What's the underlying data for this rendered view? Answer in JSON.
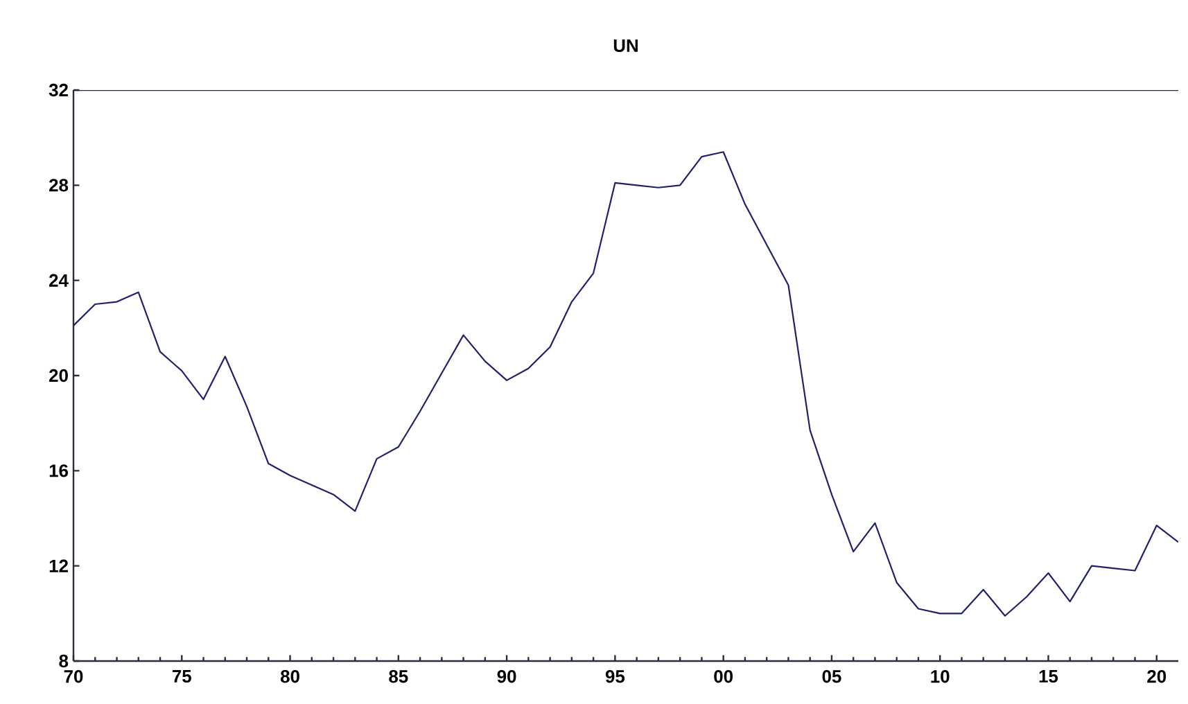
{
  "chart_data": {
    "type": "line",
    "title": "UN",
    "x": [
      1970,
      1971,
      1972,
      1973,
      1974,
      1975,
      1976,
      1977,
      1978,
      1979,
      1980,
      1981,
      1982,
      1983,
      1984,
      1985,
      1986,
      1987,
      1988,
      1989,
      1990,
      1991,
      1992,
      1993,
      1994,
      1995,
      1996,
      1997,
      1998,
      1999,
      2000,
      2001,
      2002,
      2003,
      2004,
      2005,
      2006,
      2007,
      2008,
      2009,
      2010,
      2011,
      2012,
      2013,
      2014,
      2015,
      2016,
      2017,
      2018,
      2019,
      2020,
      2021
    ],
    "series": [
      {
        "color": "#1f1f6b",
        "values": [
          22.1,
          23.0,
          23.1,
          23.5,
          21.0,
          20.2,
          19.0,
          20.8,
          18.7,
          16.3,
          15.8,
          15.4,
          15.0,
          14.3,
          16.5,
          17.0,
          18.5,
          20.1,
          21.7,
          20.6,
          19.8,
          20.3,
          21.2,
          23.1,
          24.3,
          28.1,
          28.0,
          27.9,
          28.0,
          29.2,
          29.4,
          27.2,
          25.5,
          23.8,
          17.7,
          15.0,
          12.6,
          13.8,
          11.3,
          10.2,
          10.0,
          10.0,
          11.0,
          9.9,
          10.7,
          11.7,
          10.5,
          12.0,
          11.9,
          11.8,
          13.7,
          13.0
        ]
      }
    ],
    "xlim": [
      1970,
      2021
    ],
    "xticks": [
      {
        "value": 1970,
        "label": "70"
      },
      {
        "value": 1975,
        "label": "75"
      },
      {
        "value": 1980,
        "label": "80"
      },
      {
        "value": 1985,
        "label": "85"
      },
      {
        "value": 1990,
        "label": "90"
      },
      {
        "value": 1995,
        "label": "95"
      },
      {
        "value": 2000,
        "label": "00"
      },
      {
        "value": 2005,
        "label": "05"
      },
      {
        "value": 2010,
        "label": "10"
      },
      {
        "value": 2015,
        "label": "15"
      },
      {
        "value": 2020,
        "label": "20"
      }
    ],
    "ylim": [
      8,
      32
    ],
    "yticks": [
      8,
      12,
      16,
      20,
      24,
      28,
      32
    ],
    "grid": false,
    "marker": "none",
    "line_style": "solid"
  }
}
